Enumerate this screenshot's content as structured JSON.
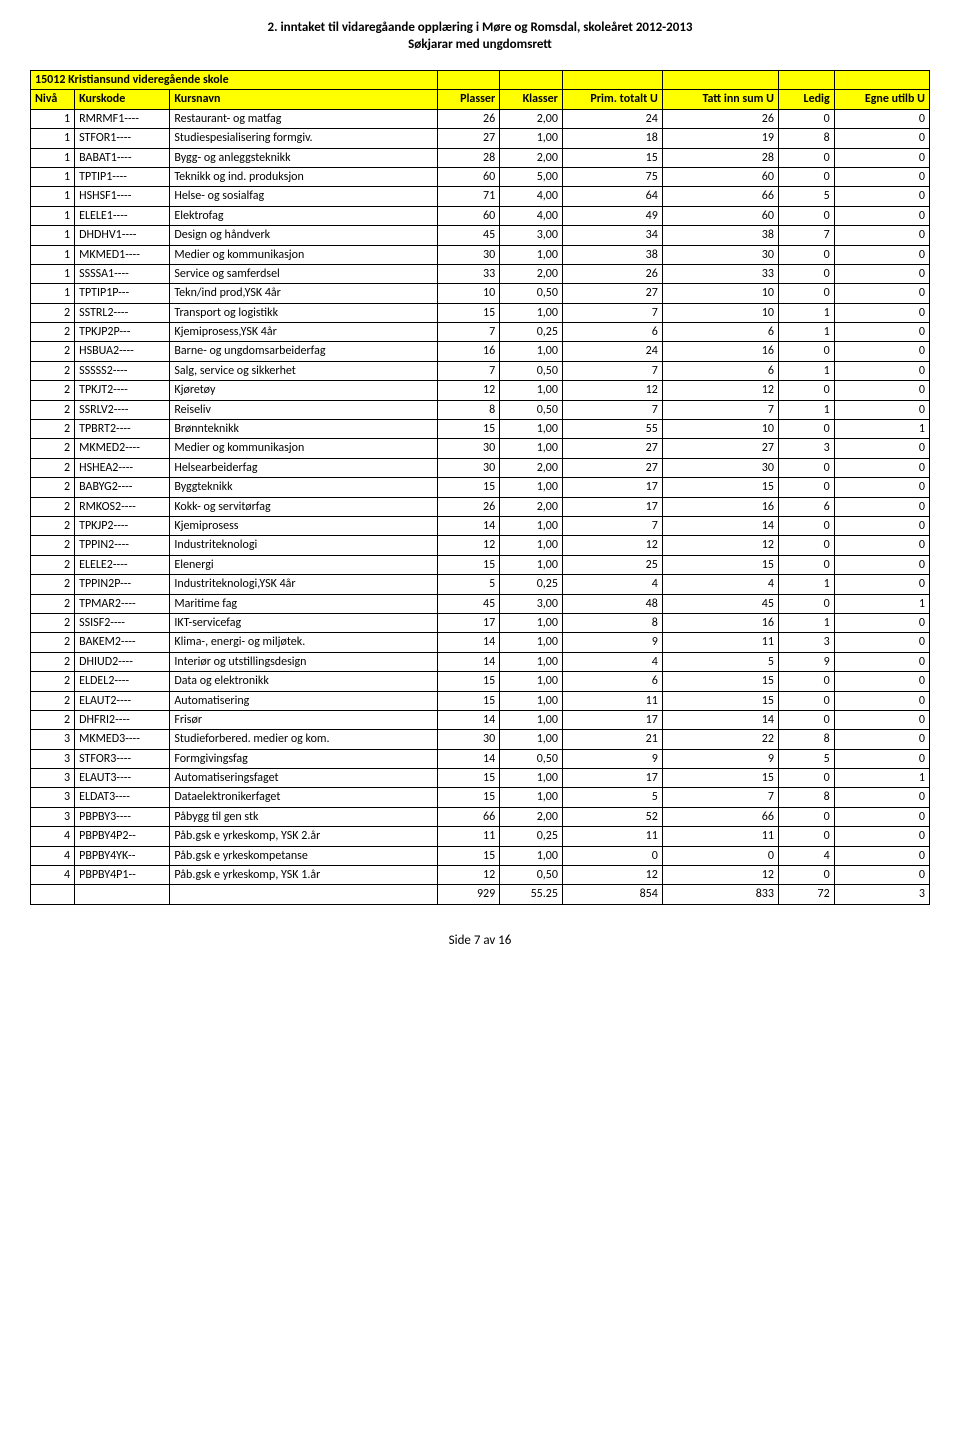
{
  "title_line1": "2. inntaket til vidaregåande opplæring i Møre og Romsdal, skoleåret 2012-2013",
  "title_line2": "Søkjarar med ungdomsrett",
  "title_fontsize": "13px",
  "school_name": "15012 Kristiansund videregående skole",
  "headers": {
    "niva": "Nivå",
    "kurskode": "Kurskode",
    "kursnavn": "Kursnavn",
    "plasser": "Plasser",
    "klasser": "Klasser",
    "prim": "Prim. totalt U",
    "tatt": "Tatt inn sum U",
    "ledig": "Ledig",
    "egne": "Egne utilb U"
  },
  "rows": [
    {
      "niva": "1",
      "kode": "RMRMF1----",
      "navn": "Restaurant- og matfag",
      "pl": "26",
      "kl": "2,00",
      "prim": "24",
      "tatt": "26",
      "led": "0",
      "eg": "0"
    },
    {
      "niva": "1",
      "kode": "STFOR1----",
      "navn": "Studiespesialisering formgiv.",
      "pl": "27",
      "kl": "1,00",
      "prim": "18",
      "tatt": "19",
      "led": "8",
      "eg": "0"
    },
    {
      "niva": "1",
      "kode": "BABAT1----",
      "navn": "Bygg- og anleggsteknikk",
      "pl": "28",
      "kl": "2,00",
      "prim": "15",
      "tatt": "28",
      "led": "0",
      "eg": "0"
    },
    {
      "niva": "1",
      "kode": "TPTIP1----",
      "navn": "Teknikk og ind. produksjon",
      "pl": "60",
      "kl": "5,00",
      "prim": "75",
      "tatt": "60",
      "led": "0",
      "eg": "0"
    },
    {
      "niva": "1",
      "kode": "HSHSF1----",
      "navn": "Helse- og sosialfag",
      "pl": "71",
      "kl": "4,00",
      "prim": "64",
      "tatt": "66",
      "led": "5",
      "eg": "0"
    },
    {
      "niva": "1",
      "kode": "ELELE1----",
      "navn": "Elektrofag",
      "pl": "60",
      "kl": "4,00",
      "prim": "49",
      "tatt": "60",
      "led": "0",
      "eg": "0"
    },
    {
      "niva": "1",
      "kode": "DHDHV1----",
      "navn": "Design og håndverk",
      "pl": "45",
      "kl": "3,00",
      "prim": "34",
      "tatt": "38",
      "led": "7",
      "eg": "0"
    },
    {
      "niva": "1",
      "kode": "MKMED1----",
      "navn": "Medier og kommunikasjon",
      "pl": "30",
      "kl": "1,00",
      "prim": "38",
      "tatt": "30",
      "led": "0",
      "eg": "0"
    },
    {
      "niva": "1",
      "kode": "SSSSA1----",
      "navn": "Service og samferdsel",
      "pl": "33",
      "kl": "2,00",
      "prim": "26",
      "tatt": "33",
      "led": "0",
      "eg": "0"
    },
    {
      "niva": "1",
      "kode": "TPTIP1P---",
      "navn": "Tekn/ind prod,YSK 4år",
      "pl": "10",
      "kl": "0,50",
      "prim": "27",
      "tatt": "10",
      "led": "0",
      "eg": "0"
    },
    {
      "niva": "2",
      "kode": "SSTRL2----",
      "navn": "Transport og logistikk",
      "pl": "15",
      "kl": "1,00",
      "prim": "7",
      "tatt": "10",
      "led": "1",
      "eg": "0"
    },
    {
      "niva": "2",
      "kode": "TPKJP2P---",
      "navn": "Kjemiprosess,YSK 4år",
      "pl": "7",
      "kl": "0,25",
      "prim": "6",
      "tatt": "6",
      "led": "1",
      "eg": "0"
    },
    {
      "niva": "2",
      "kode": "HSBUA2----",
      "navn": "Barne- og ungdomsarbeiderfag",
      "pl": "16",
      "kl": "1,00",
      "prim": "24",
      "tatt": "16",
      "led": "0",
      "eg": "0"
    },
    {
      "niva": "2",
      "kode": "SSSSS2----",
      "navn": "Salg, service og sikkerhet",
      "pl": "7",
      "kl": "0,50",
      "prim": "7",
      "tatt": "6",
      "led": "1",
      "eg": "0"
    },
    {
      "niva": "2",
      "kode": "TPKJT2----",
      "navn": "Kjøretøy",
      "pl": "12",
      "kl": "1,00",
      "prim": "12",
      "tatt": "12",
      "led": "0",
      "eg": "0"
    },
    {
      "niva": "2",
      "kode": "SSRLV2----",
      "navn": "Reiseliv",
      "pl": "8",
      "kl": "0,50",
      "prim": "7",
      "tatt": "7",
      "led": "1",
      "eg": "0"
    },
    {
      "niva": "2",
      "kode": "TPBRT2----",
      "navn": "Brønnteknikk",
      "pl": "15",
      "kl": "1,00",
      "prim": "55",
      "tatt": "10",
      "led": "0",
      "eg": "1"
    },
    {
      "niva": "2",
      "kode": "MKMED2----",
      "navn": "Medier og kommunikasjon",
      "pl": "30",
      "kl": "1,00",
      "prim": "27",
      "tatt": "27",
      "led": "3",
      "eg": "0"
    },
    {
      "niva": "2",
      "kode": "HSHEA2----",
      "navn": "Helsearbeiderfag",
      "pl": "30",
      "kl": "2,00",
      "prim": "27",
      "tatt": "30",
      "led": "0",
      "eg": "0"
    },
    {
      "niva": "2",
      "kode": "BABYG2----",
      "navn": "Byggteknikk",
      "pl": "15",
      "kl": "1,00",
      "prim": "17",
      "tatt": "15",
      "led": "0",
      "eg": "0"
    },
    {
      "niva": "2",
      "kode": "RMKOS2----",
      "navn": "Kokk- og servitørfag",
      "pl": "26",
      "kl": "2,00",
      "prim": "17",
      "tatt": "16",
      "led": "6",
      "eg": "0"
    },
    {
      "niva": "2",
      "kode": "TPKJP2----",
      "navn": "Kjemiprosess",
      "pl": "14",
      "kl": "1,00",
      "prim": "7",
      "tatt": "14",
      "led": "0",
      "eg": "0"
    },
    {
      "niva": "2",
      "kode": "TPPIN2----",
      "navn": "Industriteknologi",
      "pl": "12",
      "kl": "1,00",
      "prim": "12",
      "tatt": "12",
      "led": "0",
      "eg": "0"
    },
    {
      "niva": "2",
      "kode": "ELELE2----",
      "navn": "Elenergi",
      "pl": "15",
      "kl": "1,00",
      "prim": "25",
      "tatt": "15",
      "led": "0",
      "eg": "0"
    },
    {
      "niva": "2",
      "kode": "TPPIN2P---",
      "navn": "Industriteknologi,YSK 4år",
      "pl": "5",
      "kl": "0,25",
      "prim": "4",
      "tatt": "4",
      "led": "1",
      "eg": "0"
    },
    {
      "niva": "2",
      "kode": "TPMAR2----",
      "navn": "Maritime fag",
      "pl": "45",
      "kl": "3,00",
      "prim": "48",
      "tatt": "45",
      "led": "0",
      "eg": "1"
    },
    {
      "niva": "2",
      "kode": "SSISF2----",
      "navn": "IKT-servicefag",
      "pl": "17",
      "kl": "1,00",
      "prim": "8",
      "tatt": "16",
      "led": "1",
      "eg": "0"
    },
    {
      "niva": "2",
      "kode": "BAKEM2----",
      "navn": "Klima-, energi- og miljøtek.",
      "pl": "14",
      "kl": "1,00",
      "prim": "9",
      "tatt": "11",
      "led": "3",
      "eg": "0"
    },
    {
      "niva": "2",
      "kode": "DHIUD2----",
      "navn": "Interiør og utstillingsdesign",
      "pl": "14",
      "kl": "1,00",
      "prim": "4",
      "tatt": "5",
      "led": "9",
      "eg": "0"
    },
    {
      "niva": "2",
      "kode": "ELDEL2----",
      "navn": "Data og elektronikk",
      "pl": "15",
      "kl": "1,00",
      "prim": "6",
      "tatt": "15",
      "led": "0",
      "eg": "0"
    },
    {
      "niva": "2",
      "kode": "ELAUT2----",
      "navn": "Automatisering",
      "pl": "15",
      "kl": "1,00",
      "prim": "11",
      "tatt": "15",
      "led": "0",
      "eg": "0"
    },
    {
      "niva": "2",
      "kode": "DHFRI2----",
      "navn": "Frisør",
      "pl": "14",
      "kl": "1,00",
      "prim": "17",
      "tatt": "14",
      "led": "0",
      "eg": "0"
    },
    {
      "niva": "3",
      "kode": "MKMED3----",
      "navn": "Studieforbered. medier og kom.",
      "pl": "30",
      "kl": "1,00",
      "prim": "21",
      "tatt": "22",
      "led": "8",
      "eg": "0"
    },
    {
      "niva": "3",
      "kode": "STFOR3----",
      "navn": "Formgivingsfag",
      "pl": "14",
      "kl": "0,50",
      "prim": "9",
      "tatt": "9",
      "led": "5",
      "eg": "0"
    },
    {
      "niva": "3",
      "kode": "ELAUT3----",
      "navn": "Automatiseringsfaget",
      "pl": "15",
      "kl": "1,00",
      "prim": "17",
      "tatt": "15",
      "led": "0",
      "eg": "1"
    },
    {
      "niva": "3",
      "kode": "ELDAT3----",
      "navn": "Dataelektronikerfaget",
      "pl": "15",
      "kl": "1,00",
      "prim": "5",
      "tatt": "7",
      "led": "8",
      "eg": "0"
    },
    {
      "niva": "3",
      "kode": "PBPBY3----",
      "navn": "Påbygg til gen stk",
      "pl": "66",
      "kl": "2,00",
      "prim": "52",
      "tatt": "66",
      "led": "0",
      "eg": "0"
    },
    {
      "niva": "4",
      "kode": "PBPBY4P2--",
      "navn": "Påb.gsk e yrkeskomp, YSK 2.år",
      "pl": "11",
      "kl": "0,25",
      "prim": "11",
      "tatt": "11",
      "led": "0",
      "eg": "0"
    },
    {
      "niva": "4",
      "kode": "PBPBY4YK--",
      "navn": "Påb.gsk  e yrkeskompetanse",
      "pl": "15",
      "kl": "1,00",
      "prim": "0",
      "tatt": "0",
      "led": "4",
      "eg": "0"
    },
    {
      "niva": "4",
      "kode": "PBPBY4P1--",
      "navn": "Påb.gsk e yrkeskomp, YSK 1.år",
      "pl": "12",
      "kl": "0,50",
      "prim": "12",
      "tatt": "12",
      "led": "0",
      "eg": "0"
    }
  ],
  "totals": {
    "pl": "929",
    "kl": "55.25",
    "prim": "854",
    "tatt": "833",
    "led": "72",
    "eg": "3"
  },
  "page_footer": "Side 7 av 16",
  "colors": {
    "header_bg": "#ffff00",
    "border": "#000000",
    "text": "#000000",
    "background": "#ffffff"
  }
}
